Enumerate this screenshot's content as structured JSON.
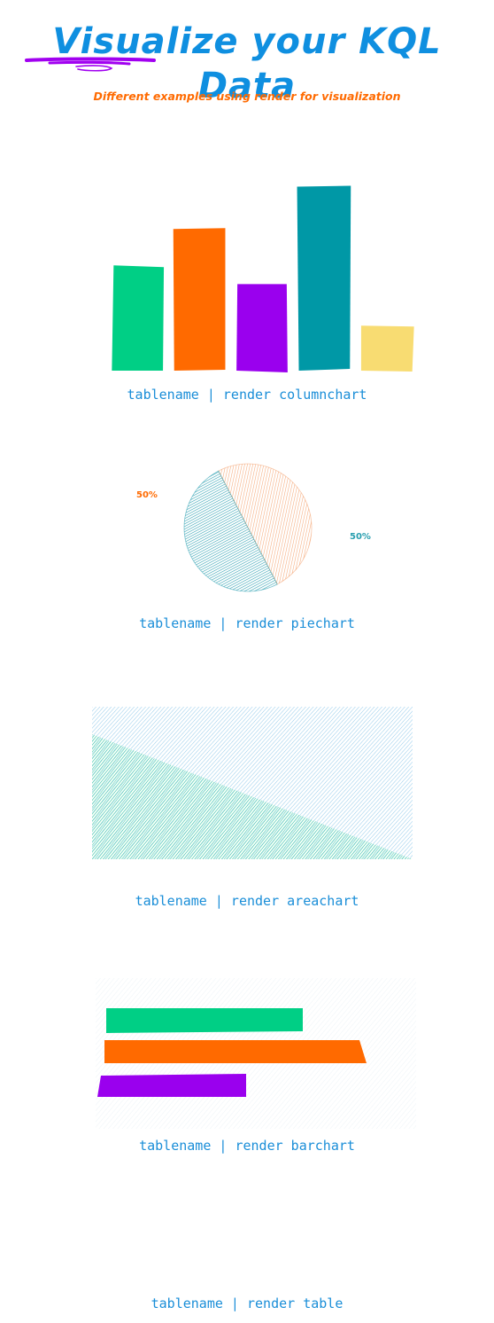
{
  "header": {
    "title": "Visualize your KQL Data",
    "subtitle": "Different examples using render for visualization"
  },
  "colors": {
    "title": "#0f8fe0",
    "subtitle": "#ff6a00",
    "underline": "#a100f0",
    "caption": "#1a8ed8",
    "green": "#00cf85",
    "orange": "#ff6a00",
    "purple": "#9a00ee",
    "teal": "#0098a6",
    "yellow": "#f8dc72",
    "pie_orange": "#f4a270",
    "pie_teal": "#2a9fb0",
    "area_blue": "#6ab7e2",
    "area_green": "#2ccf95"
  },
  "captions": {
    "column": "tablename | render columnchart",
    "pie": "tablename | render piechart",
    "area": "tablename | render areachart",
    "bar": "tablename | render barchart",
    "table": "tablename | render table"
  },
  "chart_data": [
    {
      "type": "bar",
      "orientation": "vertical",
      "values": [
        122,
        168,
        102,
        218,
        52
      ],
      "colors": [
        "#00cf85",
        "#ff6a00",
        "#9a00ee",
        "#0098a6",
        "#f8dc72"
      ],
      "ylim": [
        0,
        230
      ]
    },
    {
      "type": "pie",
      "slices": [
        {
          "label": "50%",
          "value": 50,
          "color": "#f4a270"
        },
        {
          "label": "50%",
          "value": 50,
          "color": "#2a9fb0"
        }
      ]
    },
    {
      "type": "area",
      "x": [
        0,
        1
      ],
      "series": [
        {
          "values": [
            1.0,
            1.0
          ],
          "color": "#6ab7e2"
        },
        {
          "values": [
            0.82,
            0.0
          ],
          "color": "#2ccf95"
        }
      ],
      "ylim": [
        0,
        1
      ]
    },
    {
      "type": "bar",
      "orientation": "horizontal",
      "values": [
        225,
        282,
        160
      ],
      "colors": [
        "#00cf85",
        "#ff6a00",
        "#9a00ee"
      ],
      "xlim": [
        0,
        300
      ]
    }
  ]
}
